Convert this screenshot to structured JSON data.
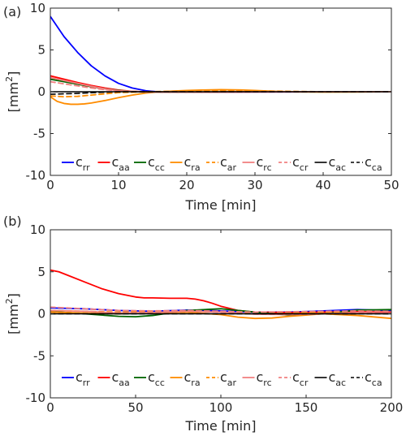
{
  "chart_data": [
    {
      "type": "line",
      "panel_label": "(a)",
      "xlabel": "Time [min]",
      "ylabel": "[mm²]",
      "ylabel_base": "[mm",
      "ylabel_sup": "2",
      "ylabel_close": "]",
      "xlim": [
        0,
        50
      ],
      "ylim": [
        -10,
        10
      ],
      "xticks": [
        0,
        10,
        20,
        30,
        40,
        50
      ],
      "xtick_labels": [
        "0",
        "10",
        "20",
        "30",
        "40",
        "50"
      ],
      "yticks": [
        -10,
        -5,
        0,
        5,
        10
      ],
      "ytick_labels": [
        "-10",
        "-5",
        "0",
        "5",
        "10"
      ],
      "grid": false,
      "legend_position": "bottom",
      "series": [
        {
          "name": "c_rr",
          "label": "c",
          "sub": "rr",
          "color": "#0000ff",
          "dash": "solid",
          "width": 1.8,
          "x": [
            0,
            2,
            4,
            6,
            8,
            10,
            12,
            14,
            16,
            18,
            20,
            25,
            30,
            35,
            40,
            45,
            50
          ],
          "y": [
            9.0,
            6.6,
            4.7,
            3.1,
            1.9,
            1.0,
            0.45,
            0.12,
            -0.02,
            -0.05,
            -0.05,
            -0.03,
            -0.02,
            -0.02,
            -0.01,
            0.0,
            0.0
          ]
        },
        {
          "name": "c_aa",
          "label": "c",
          "sub": "aa",
          "color": "#ff0000",
          "dash": "solid",
          "width": 1.8,
          "x": [
            0,
            2,
            4,
            6,
            8,
            10,
            12,
            14,
            16,
            20,
            30,
            40,
            50
          ],
          "y": [
            1.9,
            1.5,
            1.1,
            0.75,
            0.45,
            0.2,
            0.05,
            -0.02,
            -0.05,
            -0.05,
            -0.02,
            0.0,
            0.0
          ]
        },
        {
          "name": "c_cc",
          "label": "c",
          "sub": "cc",
          "color": "#006400",
          "dash": "solid",
          "width": 1.8,
          "x": [
            0,
            2,
            4,
            6,
            8,
            10,
            12,
            14,
            20,
            30,
            40,
            50
          ],
          "y": [
            1.5,
            1.2,
            0.9,
            0.6,
            0.35,
            0.15,
            0.03,
            -0.03,
            -0.03,
            -0.01,
            0.0,
            0.0
          ]
        },
        {
          "name": "c_ra",
          "label": "c",
          "sub": "ra",
          "color": "#ff8c00",
          "dash": "solid",
          "width": 1.8,
          "x": [
            0,
            1,
            2,
            3,
            4,
            5,
            6,
            8,
            10,
            12,
            14,
            16,
            18,
            20,
            22,
            25,
            28,
            30,
            33,
            36,
            40,
            45,
            50
          ],
          "y": [
            -0.6,
            -1.15,
            -1.4,
            -1.5,
            -1.5,
            -1.45,
            -1.35,
            -1.05,
            -0.7,
            -0.4,
            -0.15,
            -0.02,
            0.08,
            0.15,
            0.2,
            0.25,
            0.22,
            0.15,
            0.05,
            -0.02,
            -0.05,
            -0.03,
            0.0
          ]
        },
        {
          "name": "c_ar",
          "label": "c",
          "sub": "ar",
          "color": "#ff8c00",
          "dash": "dashed",
          "width": 1.8,
          "x": [
            0,
            2,
            4,
            6,
            8,
            10,
            14,
            20,
            25,
            30,
            40,
            50
          ],
          "y": [
            -0.5,
            -0.6,
            -0.55,
            -0.4,
            -0.25,
            -0.1,
            0.0,
            0.1,
            0.15,
            0.1,
            0.0,
            0.0
          ]
        },
        {
          "name": "c_rc",
          "label": "c",
          "sub": "rc",
          "color": "#f08080",
          "dash": "solid",
          "width": 1.8,
          "x": [
            0,
            2,
            4,
            6,
            8,
            10,
            14,
            20,
            30,
            40,
            50
          ],
          "y": [
            1.7,
            1.35,
            1.0,
            0.65,
            0.35,
            0.12,
            -0.03,
            -0.04,
            -0.02,
            0.0,
            0.0
          ]
        },
        {
          "name": "c_cr",
          "label": "c",
          "sub": "cr",
          "color": "#f08080",
          "dash": "dashed",
          "width": 1.8,
          "x": [
            0,
            2,
            4,
            6,
            8,
            10,
            14,
            20,
            30,
            40,
            50
          ],
          "y": [
            1.2,
            0.95,
            0.7,
            0.45,
            0.25,
            0.08,
            -0.03,
            -0.04,
            -0.02,
            0.0,
            0.0
          ]
        },
        {
          "name": "c_ac",
          "label": "c",
          "sub": "ac",
          "color": "#000000",
          "dash": "solid",
          "width": 1.6,
          "x": [
            0,
            10,
            20,
            30,
            40,
            50
          ],
          "y": [
            0.0,
            0.0,
            0.0,
            0.0,
            0.0,
            0.0
          ]
        },
        {
          "name": "c_ca",
          "label": "c",
          "sub": "ca",
          "color": "#000000",
          "dash": "dashed",
          "width": 1.6,
          "x": [
            0,
            2,
            4,
            6,
            8,
            10,
            12,
            14,
            20,
            30,
            40,
            50
          ],
          "y": [
            -0.3,
            -0.25,
            -0.2,
            -0.12,
            -0.05,
            0.0,
            0.0,
            0.0,
            0.0,
            0.0,
            0.0,
            0.0
          ]
        }
      ]
    },
    {
      "type": "line",
      "panel_label": "(b)",
      "xlabel": "Time [min]",
      "ylabel": "[mm²]",
      "ylabel_base": "[mm",
      "ylabel_sup": "2",
      "ylabel_close": "]",
      "xlim": [
        0,
        200
      ],
      "ylim": [
        -10,
        10
      ],
      "xticks": [
        0,
        50,
        100,
        150,
        200
      ],
      "xtick_labels": [
        "0",
        "50",
        "100",
        "150",
        "200"
      ],
      "yticks": [
        -10,
        -5,
        0,
        5,
        10
      ],
      "ytick_labels": [
        "-10",
        "-5",
        "0",
        "5",
        "10"
      ],
      "grid": false,
      "legend_position": "bottom",
      "series": [
        {
          "name": "c_rr",
          "label": "c",
          "sub": "rr",
          "color": "#0000ff",
          "dash": "solid",
          "width": 1.8,
          "x": [
            0,
            20,
            40,
            60,
            80,
            100,
            120,
            140,
            160,
            180,
            200
          ],
          "y": [
            0.7,
            0.6,
            0.4,
            0.3,
            0.45,
            0.35,
            0.2,
            0.2,
            0.35,
            0.5,
            0.4
          ]
        },
        {
          "name": "c_aa",
          "label": "c",
          "sub": "aa",
          "color": "#ff0000",
          "dash": "solid",
          "width": 1.8,
          "x": [
            0,
            5,
            10,
            20,
            30,
            40,
            50,
            55,
            60,
            70,
            80,
            85,
            90,
            95,
            100,
            110,
            120,
            140,
            160,
            180,
            200
          ],
          "y": [
            5.2,
            5.0,
            4.6,
            3.8,
            3.0,
            2.4,
            2.0,
            1.9,
            1.9,
            1.85,
            1.85,
            1.75,
            1.55,
            1.25,
            0.9,
            0.4,
            0.2,
            0.15,
            0.2,
            0.25,
            0.2
          ]
        },
        {
          "name": "c_cc",
          "label": "c",
          "sub": "cc",
          "color": "#006400",
          "dash": "solid",
          "width": 1.8,
          "x": [
            0,
            20,
            40,
            50,
            60,
            80,
            100,
            120,
            140,
            160,
            180,
            200
          ],
          "y": [
            0.3,
            0.0,
            -0.3,
            -0.35,
            -0.2,
            0.4,
            0.6,
            0.2,
            -0.15,
            0.0,
            0.45,
            0.5
          ]
        },
        {
          "name": "c_ra",
          "label": "c",
          "sub": "ra",
          "color": "#ff8c00",
          "dash": "solid",
          "width": 1.8,
          "x": [
            0,
            20,
            40,
            60,
            80,
            100,
            110,
            120,
            130,
            140,
            160,
            180,
            200
          ],
          "y": [
            0.2,
            0.1,
            0.0,
            0.1,
            0.2,
            -0.1,
            -0.4,
            -0.55,
            -0.5,
            -0.3,
            0.0,
            -0.2,
            -0.55
          ]
        },
        {
          "name": "c_ar",
          "label": "c",
          "sub": "ar",
          "color": "#ff8c00",
          "dash": "dashed",
          "width": 1.8,
          "x": [
            0,
            20,
            40,
            60,
            80,
            100,
            120,
            140,
            160,
            180,
            200
          ],
          "y": [
            0.4,
            0.3,
            0.2,
            0.2,
            0.35,
            0.2,
            0.0,
            0.05,
            0.2,
            0.1,
            0.0
          ]
        },
        {
          "name": "c_rc",
          "label": "c",
          "sub": "rc",
          "color": "#f08080",
          "dash": "solid",
          "width": 1.8,
          "x": [
            0,
            20,
            40,
            60,
            80,
            100,
            120,
            140,
            160,
            180,
            200
          ],
          "y": [
            0.4,
            0.3,
            0.1,
            0.15,
            0.3,
            0.2,
            -0.05,
            -0.1,
            0.0,
            0.15,
            0.1
          ]
        },
        {
          "name": "c_cr",
          "label": "c",
          "sub": "cr",
          "color": "#f08080",
          "dash": "dashed",
          "width": 1.8,
          "x": [
            0,
            20,
            40,
            60,
            80,
            100,
            120,
            140,
            160,
            180,
            200
          ],
          "y": [
            0.8,
            0.6,
            0.4,
            0.35,
            0.4,
            0.3,
            0.2,
            0.25,
            0.3,
            0.35,
            0.3
          ]
        },
        {
          "name": "c_ac",
          "label": "c",
          "sub": "ac",
          "color": "#000000",
          "dash": "solid",
          "width": 1.6,
          "x": [
            0,
            50,
            100,
            150,
            200
          ],
          "y": [
            0.0,
            0.0,
            0.0,
            0.0,
            0.0
          ]
        },
        {
          "name": "c_ca",
          "label": "c",
          "sub": "ca",
          "color": "#000000",
          "dash": "dashed",
          "width": 1.6,
          "x": [
            0,
            50,
            100,
            150,
            200
          ],
          "y": [
            0.0,
            0.0,
            0.0,
            0.0,
            0.0
          ]
        }
      ]
    }
  ]
}
